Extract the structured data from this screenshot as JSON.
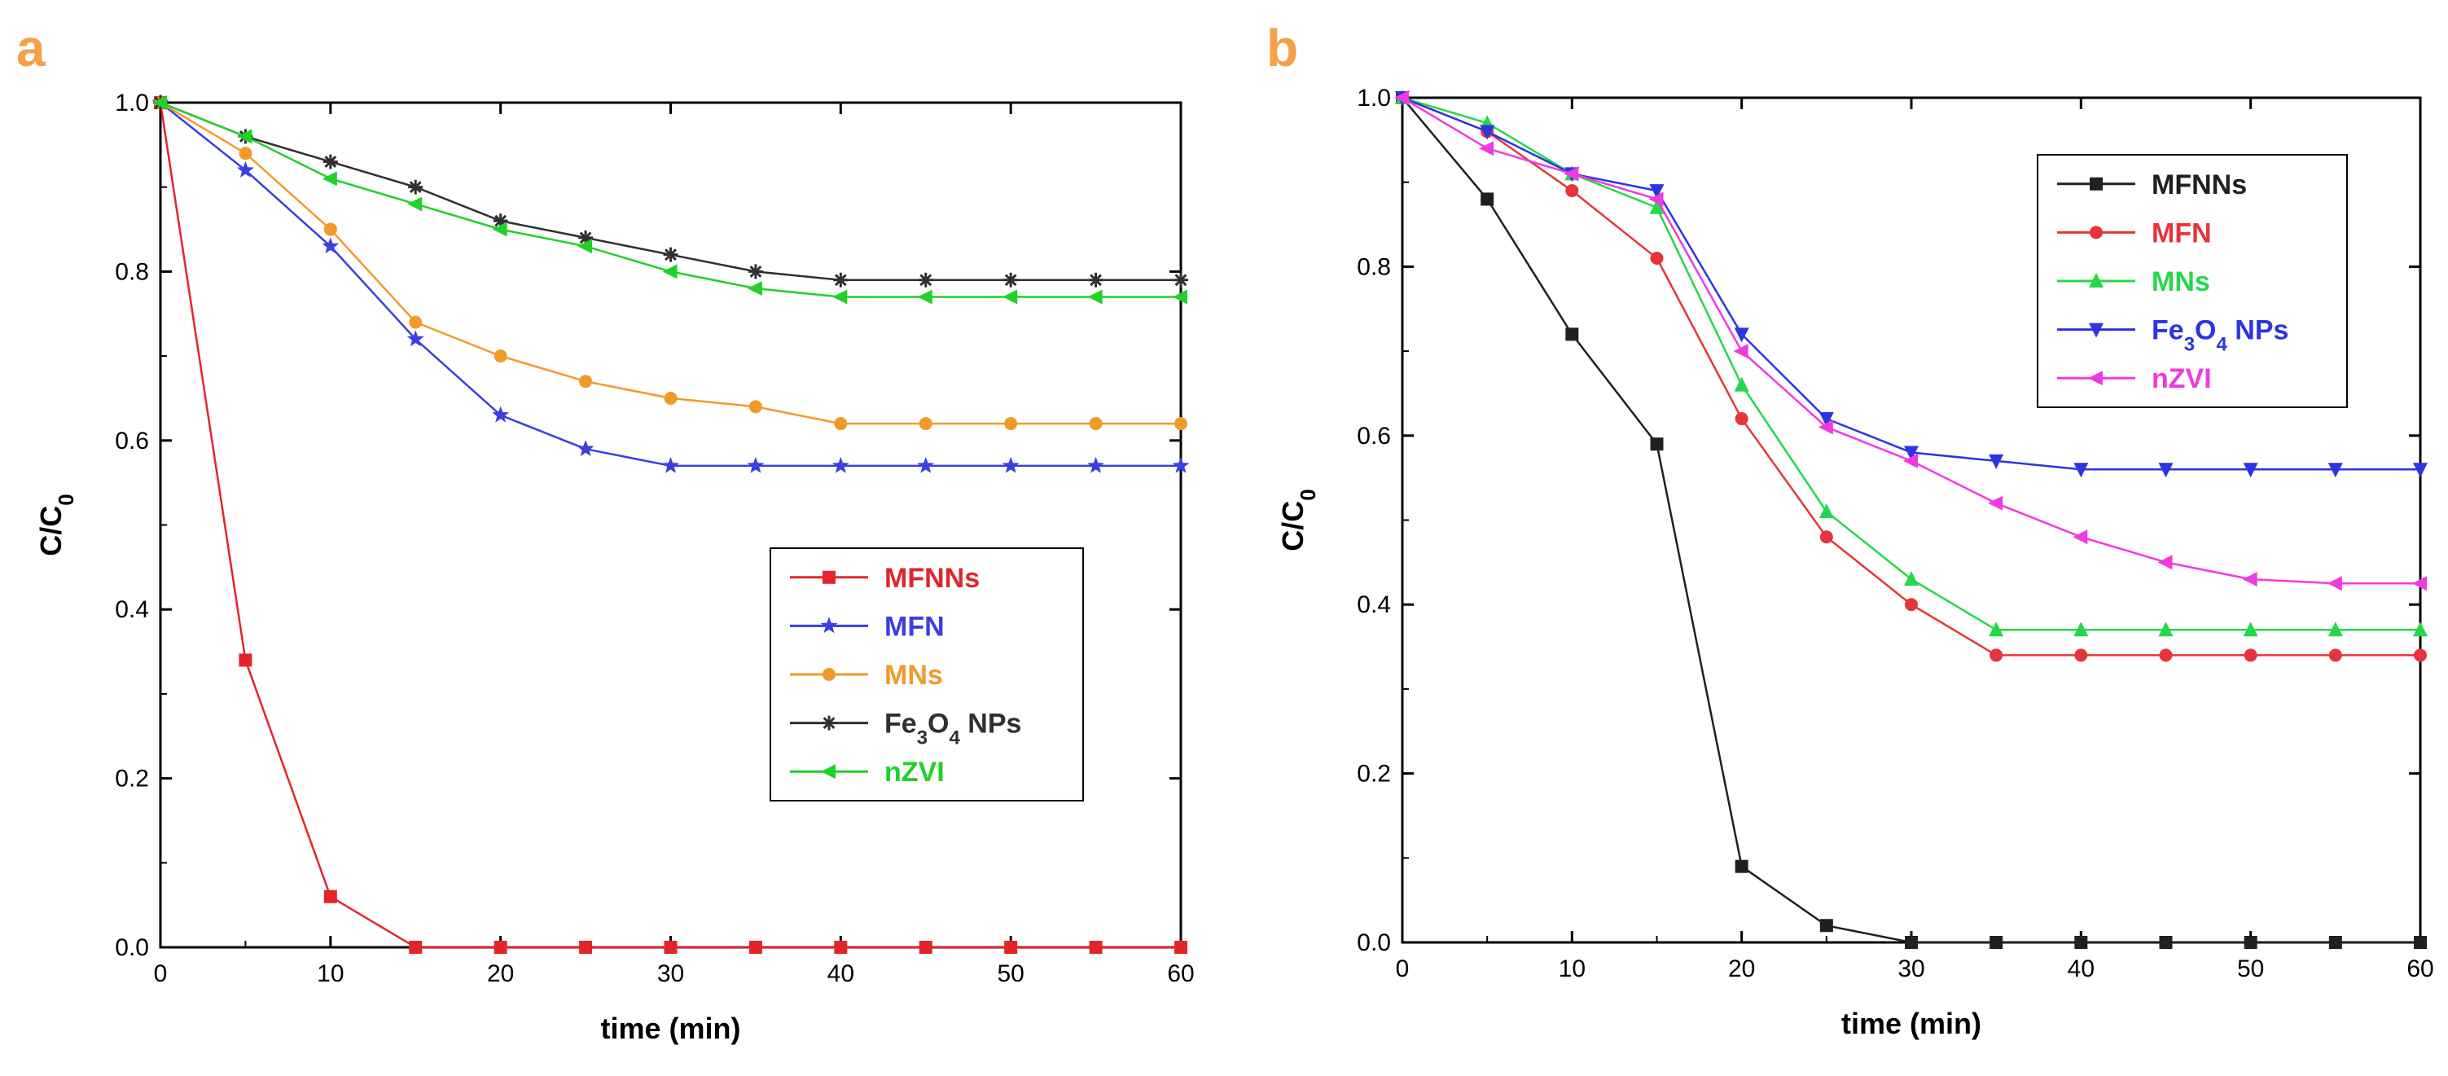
{
  "figure": {
    "panel_a_letter": "a",
    "panel_b_letter": "b",
    "panel_letter_color": "#f5a04a"
  },
  "chart_data": [
    {
      "id": "a",
      "type": "line",
      "title": "",
      "xlabel": "time (min)",
      "ylabel": "C/C0",
      "xlim": [
        0,
        60
      ],
      "ylim": [
        0,
        1.0
      ],
      "xticks": [
        0,
        10,
        20,
        30,
        40,
        50,
        60
      ],
      "yticks": [
        0.0,
        0.2,
        0.4,
        0.6,
        0.8,
        1.0
      ],
      "x": [
        0,
        5,
        10,
        15,
        20,
        25,
        30,
        35,
        40,
        45,
        50,
        55,
        60
      ],
      "legend": "center-right",
      "series": [
        {
          "name": "MFNNs",
          "color": "#e3252b",
          "marker": "square",
          "values": [
            1.0,
            0.34,
            0.06,
            0.0,
            0.0,
            0.0,
            0.0,
            0.0,
            0.0,
            0.0,
            0.0,
            0.0,
            0.0
          ]
        },
        {
          "name": "MFN",
          "color": "#3b3fe0",
          "marker": "star",
          "values": [
            1.0,
            0.92,
            0.83,
            0.72,
            0.63,
            0.59,
            0.57,
            0.57,
            0.57,
            0.57,
            0.57,
            0.57,
            0.57
          ]
        },
        {
          "name": "MNs",
          "color": "#f19a2c",
          "marker": "circle",
          "values": [
            1.0,
            0.94,
            0.85,
            0.74,
            0.7,
            0.67,
            0.65,
            0.64,
            0.62,
            0.62,
            0.62,
            0.62,
            0.62
          ]
        },
        {
          "name": "Fe3O4 NPs",
          "color": "#303030",
          "marker": "asterisk",
          "values": [
            1.0,
            0.96,
            0.93,
            0.9,
            0.86,
            0.84,
            0.82,
            0.8,
            0.79,
            0.79,
            0.79,
            0.79,
            0.79
          ]
        },
        {
          "name": "nZVI",
          "color": "#22d02a",
          "marker": "triangle-left",
          "values": [
            1.0,
            0.96,
            0.91,
            0.88,
            0.85,
            0.83,
            0.8,
            0.78,
            0.77,
            0.77,
            0.77,
            0.77,
            0.77
          ]
        }
      ]
    },
    {
      "id": "b",
      "type": "line",
      "title": "",
      "xlabel": "time (min)",
      "ylabel": "C/C0",
      "xlim": [
        0,
        60
      ],
      "ylim": [
        0,
        1.0
      ],
      "xticks": [
        0,
        10,
        20,
        30,
        40,
        50,
        60
      ],
      "yticks": [
        0.0,
        0.2,
        0.4,
        0.6,
        0.8,
        1.0
      ],
      "x": [
        0,
        5,
        10,
        15,
        20,
        25,
        30,
        35,
        40,
        45,
        50,
        55,
        60
      ],
      "legend": "top-right",
      "series": [
        {
          "name": "MFNNs",
          "color": "#202020",
          "marker": "square",
          "values": [
            1.0,
            0.88,
            0.72,
            0.59,
            0.09,
            0.02,
            0.0,
            0.0,
            0.0,
            0.0,
            0.0,
            0.0,
            0.0
          ]
        },
        {
          "name": "MFN",
          "color": "#e6353a",
          "marker": "circle",
          "values": [
            1.0,
            0.96,
            0.89,
            0.81,
            0.62,
            0.48,
            0.4,
            0.34,
            0.34,
            0.34,
            0.34,
            0.34,
            0.34
          ]
        },
        {
          "name": "MNs",
          "color": "#25d84a",
          "marker": "triangle-up",
          "values": [
            1.0,
            0.97,
            0.91,
            0.87,
            0.66,
            0.51,
            0.43,
            0.37,
            0.37,
            0.37,
            0.37,
            0.37,
            0.37
          ]
        },
        {
          "name": "Fe3O4 NPs",
          "color": "#2b35e0",
          "marker": "triangle-down",
          "values": [
            1.0,
            0.96,
            0.91,
            0.89,
            0.72,
            0.62,
            0.58,
            0.57,
            0.56,
            0.56,
            0.56,
            0.56,
            0.56
          ]
        },
        {
          "name": "nZVI",
          "color": "#f03ae0",
          "marker": "triangle-left",
          "values": [
            1.0,
            0.94,
            0.91,
            0.88,
            0.7,
            0.61,
            0.57,
            0.52,
            0.48,
            0.45,
            0.43,
            0.425,
            0.425
          ]
        }
      ]
    }
  ]
}
